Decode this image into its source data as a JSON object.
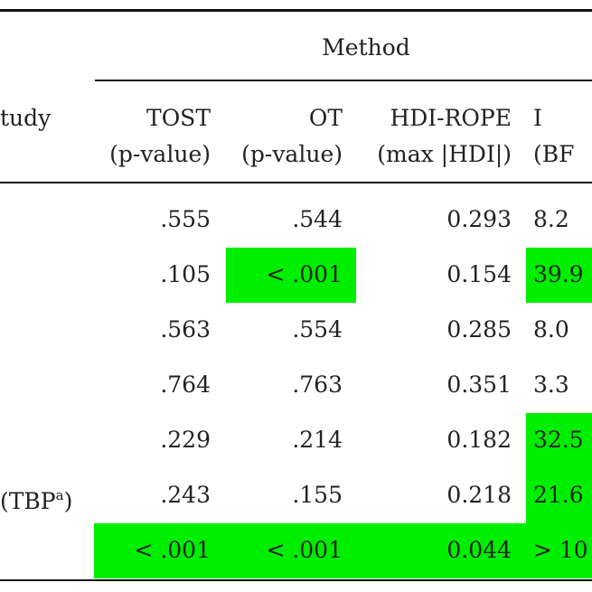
{
  "header": {
    "group": "Method",
    "stub": "tudy",
    "columns": [
      [
        "TOST",
        "(p-value)"
      ],
      [
        "OT",
        "(p-value)"
      ],
      [
        "HDI-ROPE",
        "(max |HDI|)"
      ],
      [
        "I",
        "(BF"
      ]
    ]
  },
  "table": {
    "rows": [
      {
        "label": null,
        "cells": [
          {
            "text": ".555",
            "highlight": false
          },
          {
            "text": ".544",
            "highlight": false
          },
          {
            "text": "0.293",
            "highlight": false
          },
          {
            "text": "8.2",
            "highlight": false
          }
        ]
      },
      {
        "label": null,
        "cells": [
          {
            "text": ".105",
            "highlight": false
          },
          {
            "text": "< .001",
            "highlight": true
          },
          {
            "text": "0.154",
            "highlight": false
          },
          {
            "text": "39.9",
            "highlight": true
          }
        ]
      },
      {
        "label": null,
        "cells": [
          {
            "text": ".563",
            "highlight": false
          },
          {
            "text": ".554",
            "highlight": false
          },
          {
            "text": "0.285",
            "highlight": false
          },
          {
            "text": "8.0",
            "highlight": false
          }
        ]
      },
      {
        "label": null,
        "cells": [
          {
            "text": ".764",
            "highlight": false
          },
          {
            "text": ".763",
            "highlight": false
          },
          {
            "text": "0.351",
            "highlight": false
          },
          {
            "text": "3.3",
            "highlight": false
          }
        ]
      },
      {
        "label": null,
        "cells": [
          {
            "text": ".229",
            "highlight": false
          },
          {
            "text": ".214",
            "highlight": false
          },
          {
            "text": "0.182",
            "highlight": false
          },
          {
            "text": "32.5",
            "highlight": true
          }
        ]
      },
      {
        "label": [
          "(TBP",
          "a",
          ")"
        ],
        "cells": [
          {
            "text": ".243",
            "highlight": false
          },
          {
            "text": ".155",
            "highlight": false
          },
          {
            "text": "0.218",
            "highlight": false
          },
          {
            "text": "21.6",
            "highlight": true
          }
        ]
      },
      {
        "label": null,
        "cells": [
          {
            "text": "< .001",
            "highlight": true
          },
          {
            "text": "< .001",
            "highlight": true
          },
          {
            "text": "0.044",
            "highlight": true
          },
          {
            "text": "> 10",
            "highlight": true
          }
        ]
      }
    ]
  }
}
